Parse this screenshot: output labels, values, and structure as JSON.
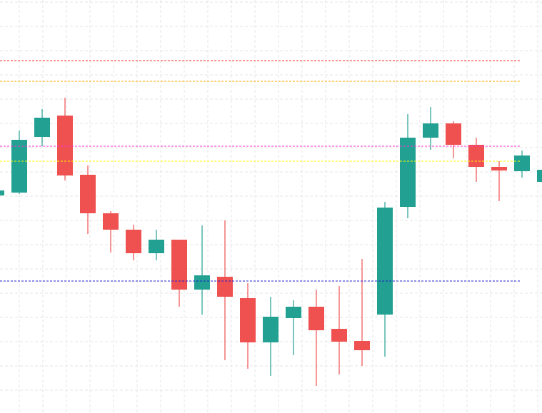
{
  "chart_data": {
    "type": "candlestick",
    "ylim": [
      0,
      579
    ],
    "grid": true,
    "up_color": "#22a092",
    "down_color": "#ef5050",
    "open": [
      305,
      309,
      387,
      417,
      334,
      280,
      257,
      224,
      243,
      173,
      191,
      161,
      99,
      133,
      149,
      118,
      101,
      138,
      289,
      386,
      406,
      376,
      345,
      339,
      324
    ],
    "high": [
      314,
      396,
      426,
      442,
      347,
      283,
      264,
      257,
      243,
      263,
      270,
      182,
      163,
      158,
      173,
      178,
      216,
      296,
      419,
      429,
      409,
      386,
      353,
      368,
      341
    ],
    "low": [
      303,
      307,
      374,
      326,
      251,
      225,
      214,
      214,
      149,
      138,
      74,
      62,
      52,
      81,
      38,
      54,
      66,
      79,
      273,
      369,
      357,
      324,
      297,
      330,
      324
    ],
    "close": [
      312,
      383,
      414,
      333,
      280,
      257,
      224,
      243,
      173,
      193,
      163,
      99,
      135,
      149,
      116,
      100,
      88,
      288,
      386,
      406,
      376,
      345,
      340,
      361,
      341
    ],
    "levels": [
      {
        "value": 494,
        "color": "#ff3030"
      },
      {
        "value": 465,
        "color": "#ffa500"
      },
      {
        "value": 374,
        "color": "#ff30d0"
      },
      {
        "value": 353,
        "color": "#ffff00"
      },
      {
        "value": 185,
        "color": "#2020cc"
      }
    ]
  }
}
